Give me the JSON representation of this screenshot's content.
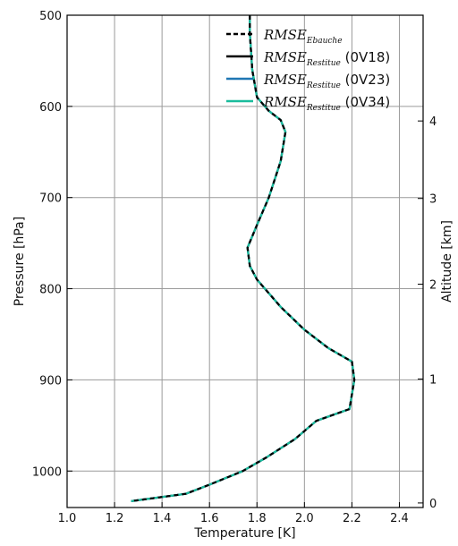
{
  "chart_data": {
    "type": "line",
    "title": "",
    "xlabel": "Temperature [K]",
    "ylabel": "Pressure [hPa]",
    "y2label": "Altitude [km]",
    "xlim": [
      1.0,
      2.5
    ],
    "ylim": [
      500,
      1040
    ],
    "y_inverted": true,
    "grid": true,
    "legend_position": "top-right",
    "x_ticks": [
      "1.0",
      "1.2",
      "1.4",
      "1.6",
      "1.8",
      "2.0",
      "2.2",
      "2.4"
    ],
    "y_ticks": [
      "500",
      "600",
      "700",
      "800",
      "900",
      "1000"
    ],
    "y2_ticks": [
      {
        "label": "4",
        "pressure": 616
      },
      {
        "label": "3",
        "pressure": 701
      },
      {
        "label": "2",
        "pressure": 795
      },
      {
        "label": "1",
        "pressure": 899
      },
      {
        "label": "0",
        "pressure": 1035
      }
    ],
    "series": [
      {
        "name": "RMSE_Ebauche",
        "base": "RMSE",
        "sub": "Ebauche",
        "suffix": "",
        "color": "#000000",
        "dash": true
      },
      {
        "name": "RMSE_Restitue (0V18)",
        "base": "RMSE",
        "sub": "Restitue",
        "suffix": " (0V18)",
        "color": "#000000",
        "dash": false
      },
      {
        "name": "RMSE_Restitue (0V23)",
        "base": "RMSE",
        "sub": "Restitue",
        "suffix": " (0V23)",
        "color": "#1f77b4",
        "dash": false
      },
      {
        "name": "RMSE_Restitue (0V34)",
        "base": "RMSE",
        "sub": "Restitue",
        "suffix": " (0V34)",
        "color": "#1abc9c",
        "dash": false
      }
    ],
    "profile": {
      "x": [
        1.77,
        1.77,
        1.78,
        1.8,
        1.85,
        1.9,
        1.92,
        1.9,
        1.85,
        1.8,
        1.76,
        1.77,
        1.8,
        1.9,
        2.0,
        2.1,
        2.2,
        2.21,
        2.19,
        2.05,
        1.96,
        1.84,
        1.74,
        1.6,
        1.5,
        1.27
      ],
      "y": [
        500,
        520,
        560,
        590,
        605,
        615,
        628,
        660,
        700,
        730,
        755,
        775,
        790,
        820,
        845,
        865,
        880,
        900,
        932,
        945,
        965,
        985,
        1000,
        1015,
        1025,
        1033
      ]
    }
  }
}
